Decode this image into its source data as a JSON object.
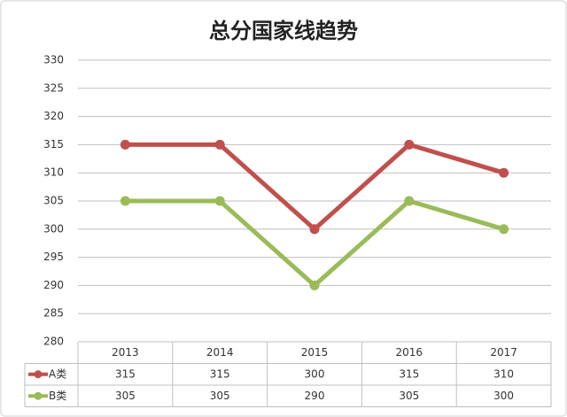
{
  "chart_data": {
    "type": "line",
    "title": "总分国家线趋势",
    "categories": [
      "2013",
      "2014",
      "2015",
      "2016",
      "2017"
    ],
    "series": [
      {
        "name": "A类",
        "color": "#c0504d",
        "values": [
          315,
          315,
          300,
          315,
          310
        ]
      },
      {
        "name": "B类",
        "color": "#9bbb59",
        "values": [
          305,
          305,
          290,
          305,
          300
        ]
      }
    ],
    "ylim": [
      280,
      330
    ],
    "yticks": [
      280,
      285,
      290,
      295,
      300,
      305,
      310,
      315,
      320,
      325,
      330
    ],
    "grid": true
  }
}
